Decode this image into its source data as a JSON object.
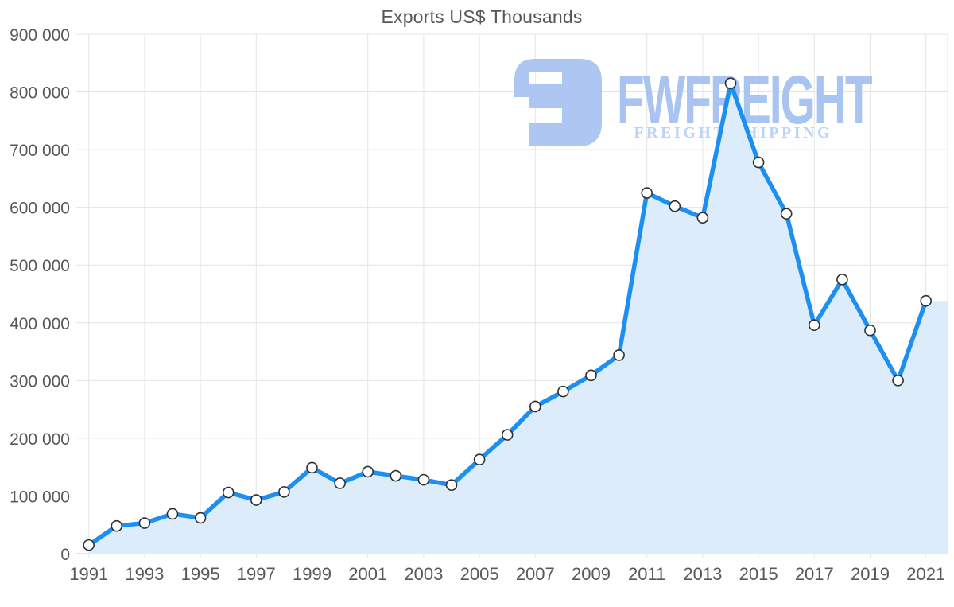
{
  "title": "Exports US$ Thousands",
  "watermark": {
    "brand": "FWFREIGHT",
    "tagline": "FREIGHT SHIPPING"
  },
  "chart_data": {
    "type": "area",
    "title": "Exports US$ Thousands",
    "x": [
      1991,
      1992,
      1993,
      1994,
      1995,
      1996,
      1997,
      1998,
      1999,
      2000,
      2001,
      2002,
      2003,
      2004,
      2005,
      2006,
      2007,
      2008,
      2009,
      2010,
      2011,
      2012,
      2013,
      2014,
      2015,
      2016,
      2017,
      2018,
      2019,
      2020,
      2021
    ],
    "series": [
      {
        "name": "Exports US$ Thousands",
        "values": [
          15000,
          48000,
          53000,
          69000,
          62000,
          106000,
          93000,
          107000,
          149000,
          122000,
          142000,
          135000,
          128000,
          119000,
          163000,
          206000,
          255000,
          281000,
          309000,
          344000,
          625000,
          602000,
          582000,
          815000,
          678000,
          589000,
          396000,
          475000,
          387000,
          300000,
          438000
        ]
      }
    ],
    "x_tick_labels": [
      "1991",
      "1993",
      "1995",
      "1997",
      "1999",
      "2001",
      "2003",
      "2005",
      "2007",
      "2009",
      "2011",
      "2013",
      "2015",
      "2017",
      "2019",
      "2021"
    ],
    "y_tick_values": [
      0,
      100000,
      200000,
      300000,
      400000,
      500000,
      600000,
      700000,
      800000,
      900000
    ],
    "y_tick_labels": [
      "0",
      "100 000",
      "200 000",
      "300 000",
      "400 000",
      "500 000",
      "600 000",
      "700 000",
      "800 000",
      "900 000"
    ],
    "ylim": [
      0,
      900000
    ],
    "grid": true,
    "legend": "none",
    "marker": "circle",
    "colors": {
      "line": "#1d8ff2",
      "fill": "#ddecfb",
      "marker_fill": "#ffffff",
      "marker_stroke": "#2f2f2f",
      "grid": "#e4e4e4",
      "axis_line": "#c9c9c9",
      "frame": "#dedede",
      "text": "#58585a",
      "logo_main": "#aec7f2",
      "logo_text": "#a9c4f0",
      "logo_tagline": "#b9d4f8"
    }
  }
}
